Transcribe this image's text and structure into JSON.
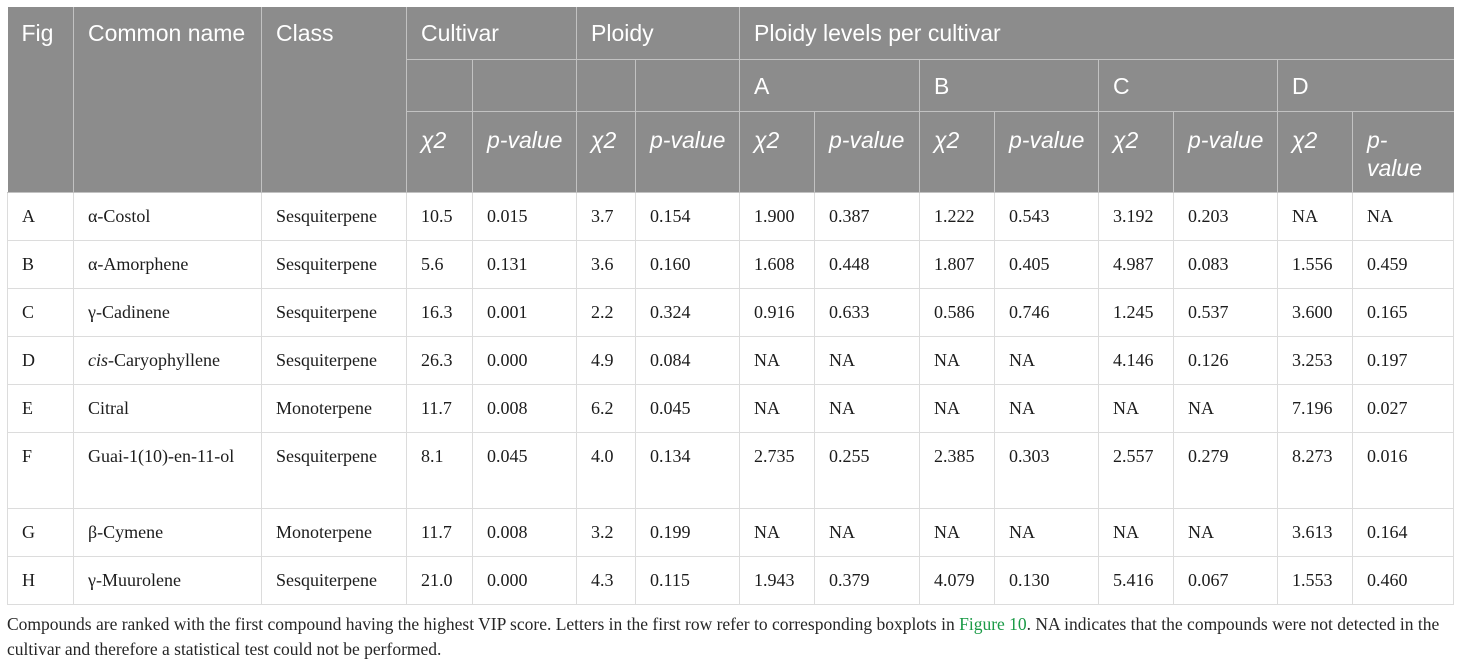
{
  "header": {
    "fig": "Fig",
    "common_name": "Common name",
    "class": "Class",
    "cultivar": "Cultivar",
    "ploidy": "Ploidy",
    "ploidy_levels": "Ploidy levels per cultivar",
    "levels": [
      "A",
      "B",
      "C",
      "D"
    ],
    "chi2": "χ2",
    "p_value": "p-value"
  },
  "rows": [
    {
      "fig": "A",
      "prefix": "",
      "name": "α-Costol",
      "class": "Sesquiterpene",
      "values": [
        "10.5",
        "0.015",
        "3.7",
        "0.154",
        "1.900",
        "0.387",
        "1.222",
        "0.543",
        "3.192",
        "0.203",
        "NA",
        "NA"
      ]
    },
    {
      "fig": "B",
      "prefix": "",
      "name": "α-Amorphene",
      "class": "Sesquiterpene",
      "values": [
        "5.6",
        "0.131",
        "3.6",
        "0.160",
        "1.608",
        "0.448",
        "1.807",
        "0.405",
        "4.987",
        "0.083",
        "1.556",
        "0.459"
      ]
    },
    {
      "fig": "C",
      "prefix": "",
      "name": "γ-Cadinene",
      "class": "Sesquiterpene",
      "values": [
        "16.3",
        "0.001",
        "2.2",
        "0.324",
        "0.916",
        "0.633",
        "0.586",
        "0.746",
        "1.245",
        "0.537",
        "3.600",
        "0.165"
      ]
    },
    {
      "fig": "D",
      "prefix": "cis",
      "name": "-Caryophyllene",
      "class": "Sesquiterpene",
      "values": [
        "26.3",
        "0.000",
        "4.9",
        "0.084",
        "NA",
        "NA",
        "NA",
        "NA",
        "4.146",
        "0.126",
        "3.253",
        "0.197"
      ]
    },
    {
      "fig": "E",
      "prefix": "",
      "name": "Citral",
      "class": "Monoterpene",
      "values": [
        "11.7",
        "0.008",
        "6.2",
        "0.045",
        "NA",
        "NA",
        "NA",
        "NA",
        "NA",
        "NA",
        "7.196",
        "0.027"
      ]
    },
    {
      "fig": "F",
      "prefix": "",
      "name": "Guai-1(10)-en-11-ol",
      "class": "Sesquiterpene",
      "values": [
        "8.1",
        "0.045",
        "4.0",
        "0.134",
        "2.735",
        "0.255",
        "2.385",
        "0.303",
        "2.557",
        "0.279",
        "8.273",
        "0.016"
      ]
    },
    {
      "fig": "G",
      "prefix": "",
      "name": "β-Cymene",
      "class": "Monoterpene",
      "values": [
        "11.7",
        "0.008",
        "3.2",
        "0.199",
        "NA",
        "NA",
        "NA",
        "NA",
        "NA",
        "NA",
        "3.613",
        "0.164"
      ]
    },
    {
      "fig": "H",
      "prefix": "",
      "name": "γ-Muurolene",
      "class": "Sesquiterpene",
      "values": [
        "21.0",
        "0.000",
        "4.3",
        "0.115",
        "1.943",
        "0.379",
        "4.079",
        "0.130",
        "5.416",
        "0.067",
        "1.553",
        "0.460"
      ]
    }
  ],
  "footnote": {
    "part1": "Compounds are ranked with the first compound having the highest VIP score. Letters in the first row refer to corresponding boxplots in ",
    "link": "Figure 10",
    "part2": ". NA indicates that the compounds were not detected in the cultivar and therefore a statistical test could not be performed."
  },
  "colors": {
    "header_bg": "#8c8c8c",
    "header_text": "#ffffff",
    "link": "#1a9a46"
  }
}
